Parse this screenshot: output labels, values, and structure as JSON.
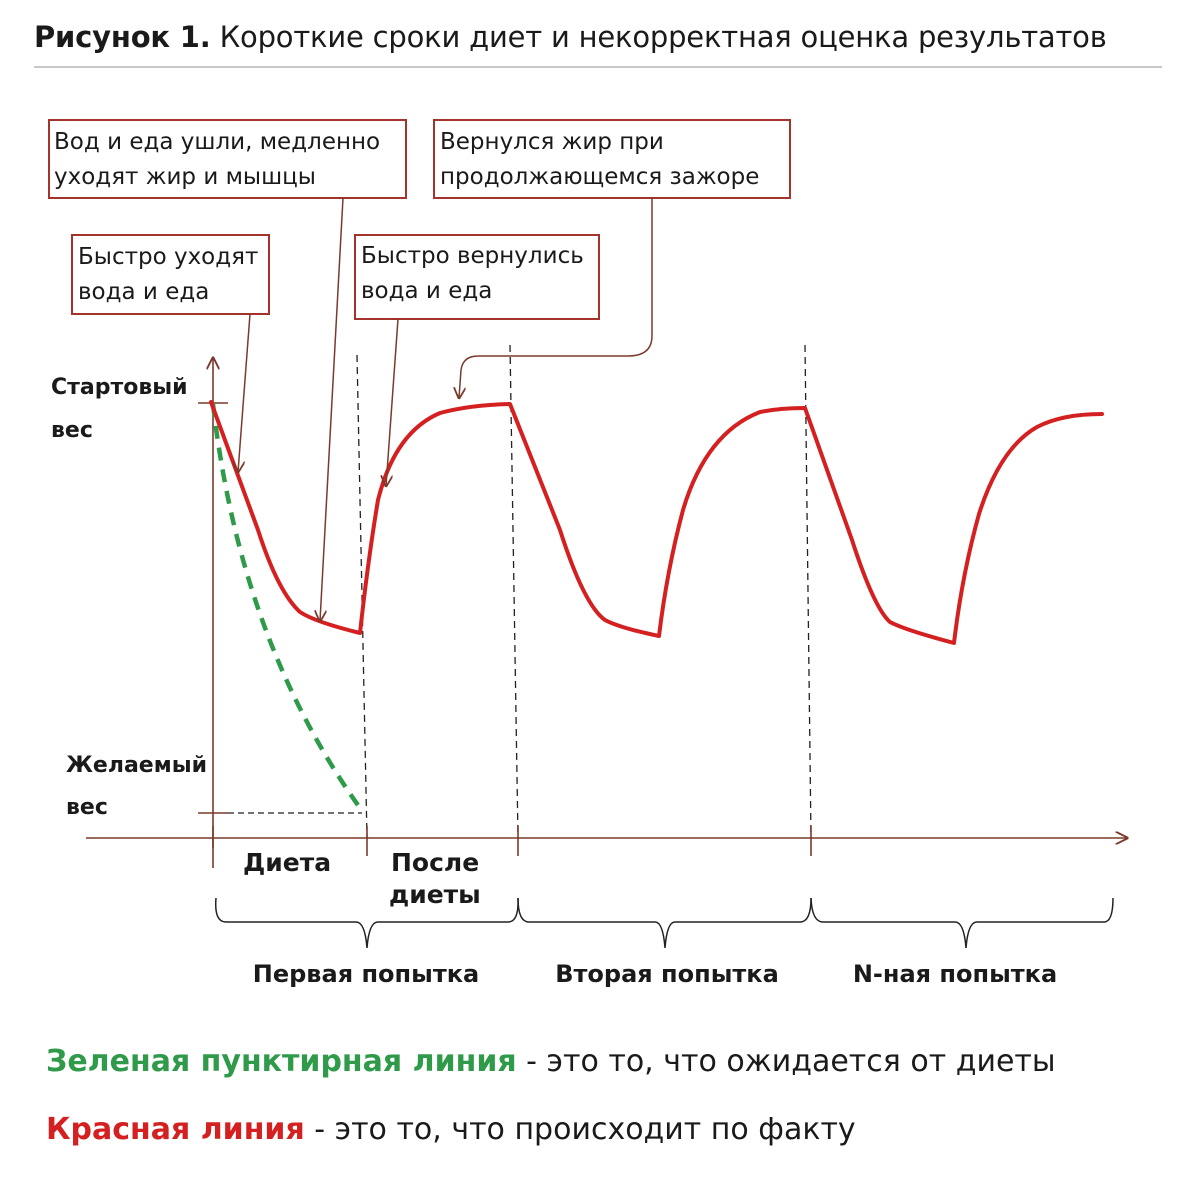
{
  "title": {
    "prefix": "Рисунок 1.",
    "text": "Короткие сроки диет и некорректная оценка результатов"
  },
  "axis_labels": {
    "start_weight": [
      "Стартовый",
      "вес"
    ],
    "target_weight": [
      "Желаемый",
      "вес"
    ]
  },
  "callouts": {
    "water_food_gone": [
      "Вод и еда ушли, медленно",
      "уходят жир и мышцы"
    ],
    "fat_returned": [
      "Вернулся жир при",
      "продолжающемся зажоре"
    ],
    "fast_loss": [
      "Быстро уходят",
      "вода и еда"
    ],
    "fast_return": [
      "Быстро вернулись",
      "вода и еда"
    ]
  },
  "phases": {
    "diet": "Диета",
    "after_diet": [
      "После",
      "диеты"
    ]
  },
  "attempts": [
    "Первая попытка",
    "Вторая попытка",
    "N-ная попытка"
  ],
  "legend": {
    "green_key": "Зеленая пунктирная линия",
    "green_text": " - это то, что ожидается от диеты",
    "red_key": "Красная линия",
    "red_text": " - это то, что происходит по факту"
  },
  "colors": {
    "actual_line": "#d42020",
    "expected_line": "#2e9a4a",
    "axis": "#7a3a2c",
    "callout_border": "#a3332b"
  }
}
